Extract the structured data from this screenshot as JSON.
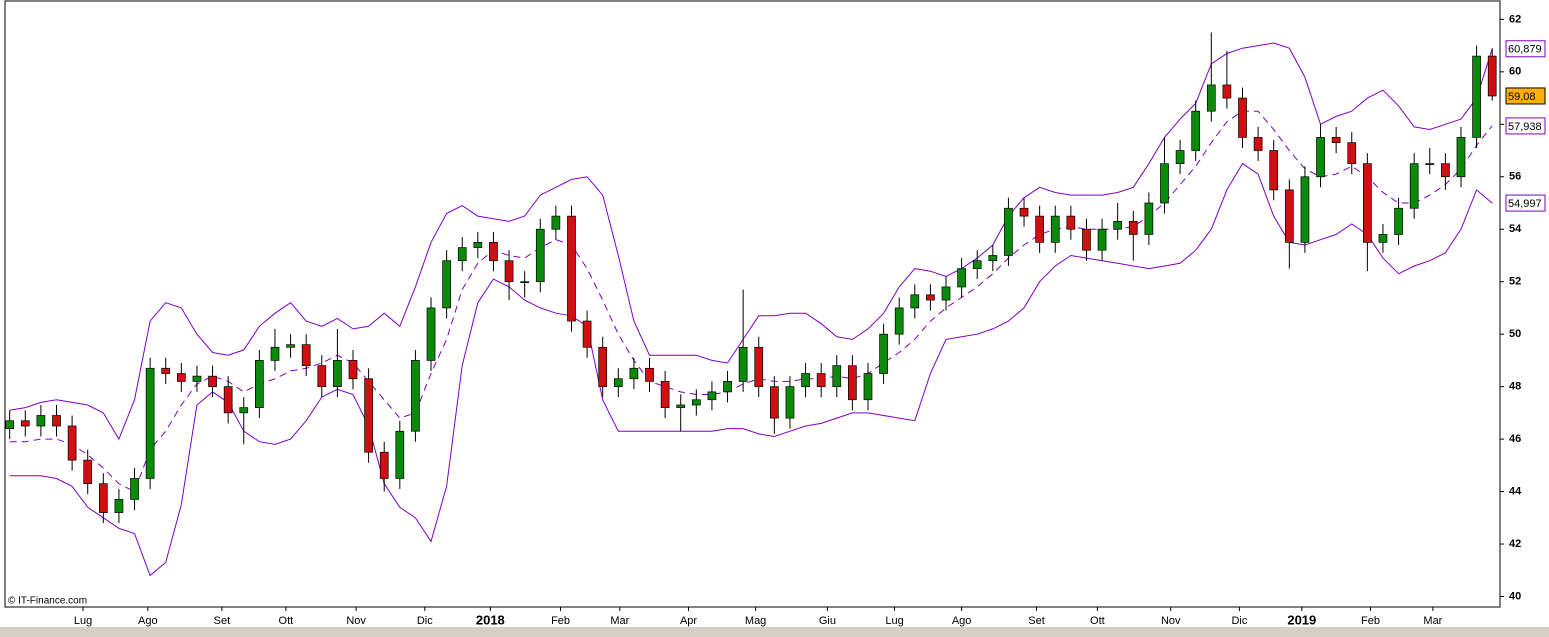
{
  "chart_data": {
    "type": "candlestick",
    "watermark": "© IT-Finance.com",
    "categories": [
      null,
      null,
      null,
      null,
      null,
      null,
      null,
      null,
      null,
      null,
      null,
      null,
      null,
      null,
      null,
      null,
      null,
      null,
      null,
      null,
      null,
      null,
      null,
      null,
      null,
      null,
      null,
      null,
      null,
      null,
      null,
      null,
      null,
      null,
      null,
      null,
      null,
      null,
      null,
      null,
      null,
      null,
      null,
      null,
      null,
      null,
      null,
      null,
      null,
      null,
      null,
      null,
      null,
      null,
      null,
      null,
      null,
      null,
      null,
      null,
      null,
      null,
      null,
      null,
      null,
      null,
      null,
      null,
      null,
      null,
      null,
      null,
      null,
      null,
      null,
      null,
      null,
      null,
      null,
      null,
      null,
      null,
      null,
      null,
      null,
      null,
      null,
      null,
      null,
      null,
      null,
      null,
      null,
      null,
      null,
      null
    ],
    "xlim": [
      -0.3,
      95.5
    ],
    "xticks": [
      {
        "value": 4.7,
        "label": "Lug"
      },
      {
        "value": 8.85,
        "label": "Ago"
      },
      {
        "value": 13.6,
        "label": "Set"
      },
      {
        "value": 17.7,
        "label": "Ott"
      },
      {
        "value": 22.2,
        "label": "Nov"
      },
      {
        "value": 26.6,
        "label": "Dic"
      },
      {
        "value": 30.8,
        "label": "2018"
      },
      {
        "value": 35.3,
        "label": "Feb"
      },
      {
        "value": 39.1,
        "label": "Mar"
      },
      {
        "value": 43.5,
        "label": "Apr"
      },
      {
        "value": 47.8,
        "label": "Mag"
      },
      {
        "value": 52.4,
        "label": "Giu"
      },
      {
        "value": 56.7,
        "label": "Lug"
      },
      {
        "value": 61.0,
        "label": "Ago"
      },
      {
        "value": 65.8,
        "label": "Set"
      },
      {
        "value": 69.7,
        "label": "Ott"
      },
      {
        "value": 74.4,
        "label": "Nov"
      },
      {
        "value": 78.8,
        "label": "Dic"
      },
      {
        "value": 82.8,
        "label": "2019"
      },
      {
        "value": 87.2,
        "label": "Feb"
      },
      {
        "value": 91.2,
        "label": "Mar"
      }
    ],
    "ylim": [
      39.6,
      62.7
    ],
    "yticks": [
      40,
      42,
      44,
      46,
      48,
      50,
      52,
      54,
      56,
      58,
      60,
      62
    ],
    "up_color": "#0a8a0a",
    "down_color": "#d01010",
    "candles": {
      "open": [
        46.4,
        46.7,
        46.5,
        46.9,
        46.5,
        45.2,
        44.3,
        43.2,
        43.7,
        44.5,
        48.7,
        48.5,
        48.2,
        48.4,
        48.0,
        47.0,
        47.2,
        49.0,
        49.5,
        49.6,
        48.8,
        48.0,
        49.0,
        48.3,
        45.5,
        44.5,
        46.3,
        49.0,
        51.0,
        52.8,
        53.3,
        53.5,
        52.8,
        52.0,
        52.0,
        54.0,
        54.5,
        50.5,
        49.5,
        48.0,
        48.3,
        48.7,
        48.2,
        47.2,
        47.3,
        47.5,
        47.8,
        48.2,
        49.5,
        48.0,
        46.8,
        48.0,
        48.5,
        48.0,
        48.8,
        47.5,
        48.5,
        50.0,
        51.0,
        51.5,
        51.3,
        51.8,
        52.5,
        52.8,
        53.0,
        54.8,
        54.5,
        53.5,
        54.5,
        54.0,
        53.2,
        54.0,
        54.3,
        53.8,
        55.0,
        56.5,
        57.0,
        58.5,
        59.5,
        59.0,
        57.5,
        57.0,
        55.5,
        53.5,
        56.0,
        57.5,
        57.3,
        56.5,
        53.5,
        53.8,
        54.8,
        56.5,
        56.5,
        56.0,
        57.5,
        60.6
      ],
      "high": [
        47.1,
        47.1,
        47.3,
        47.3,
        46.9,
        45.6,
        44.7,
        44.1,
        44.9,
        49.1,
        49.1,
        48.9,
        48.8,
        48.8,
        48.4,
        47.6,
        49.4,
        50.2,
        50.0,
        50.0,
        49.2,
        50.2,
        49.4,
        48.7,
        45.9,
        46.7,
        49.4,
        51.4,
        53.2,
        53.7,
        53.9,
        53.9,
        53.2,
        52.4,
        54.4,
        54.9,
        54.9,
        50.9,
        49.9,
        48.7,
        49.1,
        49.1,
        48.6,
        47.7,
        47.9,
        48.2,
        48.6,
        51.7,
        49.9,
        48.4,
        48.4,
        48.9,
        48.9,
        49.2,
        49.2,
        48.9,
        50.4,
        51.4,
        51.9,
        51.9,
        52.2,
        52.9,
        53.2,
        53.4,
        55.2,
        55.2,
        54.9,
        54.9,
        54.9,
        54.4,
        54.4,
        55.0,
        54.7,
        55.4,
        57.5,
        57.4,
        58.9,
        61.5,
        60.8,
        59.4,
        57.9,
        57.4,
        55.9,
        56.4,
        58.0,
        57.9,
        57.7,
        56.9,
        54.2,
        55.2,
        56.9,
        57.1,
        56.9,
        57.9,
        61.0,
        60.9
      ],
      "low": [
        46.0,
        46.1,
        46.1,
        46.1,
        44.8,
        43.9,
        42.8,
        42.8,
        43.3,
        44.1,
        48.1,
        47.8,
        47.8,
        47.6,
        46.6,
        45.8,
        46.8,
        48.6,
        49.1,
        48.4,
        47.6,
        47.6,
        47.9,
        45.1,
        44.0,
        44.1,
        45.9,
        48.6,
        50.6,
        52.4,
        52.9,
        52.4,
        51.3,
        51.4,
        51.6,
        53.6,
        50.1,
        49.1,
        47.6,
        47.6,
        47.9,
        47.8,
        46.8,
        46.3,
        46.9,
        47.1,
        47.4,
        47.8,
        47.6,
        46.2,
        46.4,
        47.6,
        47.6,
        47.6,
        47.1,
        47.1,
        48.1,
        49.6,
        50.6,
        50.9,
        50.9,
        51.4,
        52.1,
        52.4,
        52.6,
        54.1,
        53.1,
        53.1,
        53.6,
        52.8,
        52.8,
        53.6,
        52.8,
        53.4,
        54.6,
        56.1,
        56.6,
        58.1,
        58.6,
        57.1,
        56.6,
        55.1,
        52.5,
        53.1,
        55.6,
        56.9,
        56.1,
        52.4,
        53.1,
        53.4,
        54.4,
        56.1,
        55.5,
        55.6,
        57.1,
        58.9
      ],
      "close": [
        46.7,
        46.5,
        46.9,
        46.5,
        45.2,
        44.3,
        43.2,
        43.7,
        44.5,
        48.7,
        48.5,
        48.2,
        48.4,
        48.0,
        47.0,
        47.2,
        49.0,
        49.5,
        49.6,
        48.8,
        48.0,
        49.0,
        48.3,
        45.5,
        44.5,
        46.3,
        49.0,
        51.0,
        52.8,
        53.3,
        53.5,
        52.8,
        52.0,
        52.0,
        54.0,
        54.5,
        50.5,
        49.5,
        48.0,
        48.3,
        48.7,
        48.2,
        47.2,
        47.3,
        47.5,
        47.8,
        48.2,
        49.5,
        48.0,
        46.8,
        48.0,
        48.5,
        48.0,
        48.8,
        47.5,
        48.5,
        50.0,
        51.0,
        51.5,
        51.3,
        51.8,
        52.5,
        52.8,
        53.0,
        54.8,
        54.5,
        53.5,
        54.5,
        54.0,
        53.2,
        54.0,
        54.3,
        53.8,
        55.0,
        56.5,
        57.0,
        58.5,
        59.5,
        59.0,
        57.5,
        57.0,
        55.5,
        53.5,
        56.0,
        57.5,
        57.3,
        56.5,
        53.5,
        53.8,
        54.8,
        56.5,
        56.5,
        56.0,
        57.5,
        60.6,
        59.08
      ],
      "value_labels": [
        null,
        null,
        null,
        null,
        null,
        null,
        null,
        null,
        null,
        null,
        null,
        null,
        null,
        null,
        null,
        null,
        null,
        null,
        null,
        null,
        null,
        null,
        null,
        null,
        null,
        null,
        null,
        null,
        null,
        null,
        null,
        null,
        null,
        null,
        null,
        null,
        null,
        null,
        null,
        null,
        null,
        null,
        null,
        null,
        null,
        null,
        null,
        null,
        null,
        null,
        null,
        null,
        null,
        null,
        null,
        null,
        null,
        null,
        null,
        null,
        null,
        null,
        null,
        null,
        null,
        null,
        null,
        null,
        null,
        null,
        null,
        null,
        null,
        null,
        null,
        null,
        null,
        null,
        null,
        null,
        null,
        null,
        null,
        null,
        null,
        null,
        null,
        null,
        null,
        null,
        null,
        null,
        null,
        null,
        null,
        "59,08"
      ],
      "label_color": "#ffb000"
    },
    "bands": [
      {
        "color": "#8000c0",
        "dashed": false,
        "values": [
          47.1,
          47.2,
          47.4,
          47.5,
          47.4,
          47.3,
          47.0,
          46.0,
          47.5,
          50.5,
          51.2,
          51.0,
          50.0,
          49.3,
          49.2,
          49.4,
          50.3,
          50.8,
          51.2,
          50.5,
          50.3,
          50.6,
          50.2,
          50.3,
          50.8,
          50.3,
          51.8,
          53.5,
          54.6,
          54.9,
          54.5,
          54.4,
          54.3,
          54.5,
          55.3,
          55.6,
          55.9,
          56.0,
          55.3,
          53.0,
          50.5,
          49.2,
          49.2,
          49.2,
          49.2,
          49.0,
          48.9,
          49.8,
          50.7,
          50.7,
          50.8,
          50.8,
          50.4,
          49.9,
          49.8,
          50.2,
          50.8,
          51.8,
          52.5,
          52.4,
          52.2,
          52.5,
          52.9,
          53.4,
          54.5,
          55.2,
          55.6,
          55.4,
          55.3,
          55.3,
          55.3,
          55.4,
          55.6,
          56.5,
          57.5,
          58.2,
          58.8,
          60.3,
          60.7,
          60.9,
          61.0,
          61.1,
          60.9,
          59.8,
          58.0,
          58.3,
          58.5,
          59.0,
          59.3,
          58.7,
          57.9,
          57.8,
          58.0,
          58.2,
          59.0,
          60.879
        ],
        "value_labels": [
          null,
          null,
          null,
          null,
          null,
          null,
          null,
          null,
          null,
          null,
          null,
          null,
          null,
          null,
          null,
          null,
          null,
          null,
          null,
          null,
          null,
          null,
          null,
          null,
          null,
          null,
          null,
          null,
          null,
          null,
          null,
          null,
          null,
          null,
          null,
          null,
          null,
          null,
          null,
          null,
          null,
          null,
          null,
          null,
          null,
          null,
          null,
          null,
          null,
          null,
          null,
          null,
          null,
          null,
          null,
          null,
          null,
          null,
          null,
          null,
          null,
          null,
          null,
          null,
          null,
          null,
          null,
          null,
          null,
          null,
          null,
          null,
          null,
          null,
          null,
          null,
          null,
          null,
          null,
          null,
          null,
          null,
          null,
          null,
          null,
          null,
          null,
          null,
          null,
          null,
          null,
          null,
          null,
          null,
          null,
          "60,879"
        ]
      },
      {
        "color": "#8000c0",
        "dashed": true,
        "values": [
          45.9,
          45.9,
          46.0,
          46.0,
          45.8,
          45.4,
          44.9,
          44.3,
          44.0,
          45.6,
          46.3,
          47.3,
          48.1,
          48.4,
          48.2,
          47.8,
          48.1,
          48.3,
          48.6,
          48.7,
          48.9,
          49.2,
          48.9,
          48.2,
          47.5,
          46.8,
          47.0,
          48.5,
          49.8,
          51.7,
          52.7,
          53.2,
          53.0,
          52.9,
          53.3,
          53.6,
          53.4,
          52.5,
          51.3,
          50.0,
          49.0,
          48.2,
          48.0,
          47.8,
          47.7,
          47.7,
          47.8,
          48.1,
          48.3,
          48.2,
          48.2,
          48.3,
          48.3,
          48.4,
          48.3,
          48.5,
          48.9,
          49.3,
          49.8,
          50.5,
          51.0,
          51.4,
          51.8,
          52.3,
          52.9,
          53.4,
          53.8,
          54.0,
          54.1,
          54.0,
          54.0,
          54.0,
          54.1,
          54.5,
          55.0,
          55.7,
          56.4,
          57.3,
          58.1,
          58.5,
          58.5,
          57.8,
          57.0,
          56.3,
          56.0,
          56.1,
          56.4,
          56.0,
          55.4,
          55.0,
          55.0,
          55.3,
          55.7,
          56.3,
          57.2,
          57.938
        ],
        "value_labels": [
          null,
          null,
          null,
          null,
          null,
          null,
          null,
          null,
          null,
          null,
          null,
          null,
          null,
          null,
          null,
          null,
          null,
          null,
          null,
          null,
          null,
          null,
          null,
          null,
          null,
          null,
          null,
          null,
          null,
          null,
          null,
          null,
          null,
          null,
          null,
          null,
          null,
          null,
          null,
          null,
          null,
          null,
          null,
          null,
          null,
          null,
          null,
          null,
          null,
          null,
          null,
          null,
          null,
          null,
          null,
          null,
          null,
          null,
          null,
          null,
          null,
          null,
          null,
          null,
          null,
          null,
          null,
          null,
          null,
          null,
          null,
          null,
          null,
          null,
          null,
          null,
          null,
          null,
          null,
          null,
          null,
          null,
          null,
          null,
          null,
          null,
          null,
          null,
          null,
          null,
          null,
          null,
          null,
          null,
          null,
          "57,938"
        ]
      },
      {
        "color": "#8000c0",
        "dashed": false,
        "values": [
          44.6,
          44.6,
          44.6,
          44.5,
          44.2,
          43.4,
          43.0,
          42.6,
          42.4,
          40.8,
          41.3,
          43.5,
          47.3,
          47.8,
          47.4,
          46.3,
          45.9,
          45.8,
          46.0,
          46.7,
          47.6,
          47.9,
          47.7,
          46.5,
          44.3,
          43.4,
          43.0,
          42.1,
          44.2,
          48.8,
          51.2,
          52.1,
          51.8,
          51.3,
          51.0,
          50.8,
          50.7,
          50.3,
          47.5,
          46.3,
          46.3,
          46.3,
          46.3,
          46.3,
          46.3,
          46.3,
          46.4,
          46.4,
          46.2,
          46.1,
          46.3,
          46.5,
          46.6,
          46.8,
          47.0,
          47.0,
          46.9,
          46.8,
          46.7,
          48.5,
          49.8,
          49.9,
          50.0,
          50.2,
          50.5,
          51.0,
          52.0,
          52.6,
          53.0,
          52.9,
          52.8,
          52.7,
          52.6,
          52.5,
          52.6,
          52.7,
          53.2,
          54.0,
          55.5,
          56.5,
          56.1,
          54.5,
          53.5,
          53.4,
          53.6,
          53.8,
          54.2,
          53.8,
          52.9,
          52.3,
          52.6,
          52.8,
          53.1,
          54.0,
          55.5,
          54.997
        ],
        "value_labels": [
          null,
          null,
          null,
          null,
          null,
          null,
          null,
          null,
          null,
          null,
          null,
          null,
          null,
          null,
          null,
          null,
          null,
          null,
          null,
          null,
          null,
          null,
          null,
          null,
          null,
          null,
          null,
          null,
          null,
          null,
          null,
          null,
          null,
          null,
          null,
          null,
          null,
          null,
          null,
          null,
          null,
          null,
          null,
          null,
          null,
          null,
          null,
          null,
          null,
          null,
          null,
          null,
          null,
          null,
          null,
          null,
          null,
          null,
          null,
          null,
          null,
          null,
          null,
          null,
          null,
          null,
          null,
          null,
          null,
          null,
          null,
          null,
          null,
          null,
          null,
          null,
          null,
          null,
          null,
          null,
          null,
          null,
          null,
          null,
          null,
          null,
          null,
          null,
          null,
          null,
          null,
          null,
          null,
          null,
          null,
          "54,997"
        ]
      }
    ]
  }
}
